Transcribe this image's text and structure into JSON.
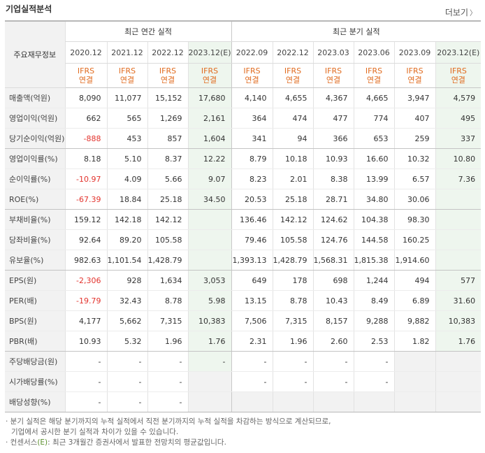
{
  "title": "기업실적분석",
  "more": "더보기",
  "table": {
    "row_header": "주요재무정보",
    "annual_group": "최근 연간 실적",
    "quarter_group": "최근 분기 실적",
    "periods": [
      "2020.12",
      "2021.12",
      "2022.12",
      "2023.12(E)",
      "2022.09",
      "2022.12",
      "2023.03",
      "2023.06",
      "2023.09",
      "2023.12(E)"
    ],
    "basis_top": "IFRS",
    "basis_bottom": "연결",
    "rows": [
      {
        "label": "매출액(억원)",
        "values": [
          "8,090",
          "11,077",
          "15,152",
          "17,680",
          "4,140",
          "4,655",
          "4,367",
          "4,665",
          "3,947",
          "4,579"
        ]
      },
      {
        "label": "영업이익(억원)",
        "values": [
          "662",
          "565",
          "1,269",
          "2,161",
          "364",
          "474",
          "477",
          "774",
          "407",
          "495"
        ]
      },
      {
        "label": "당기순이익(억원)",
        "values": [
          "-888",
          "453",
          "857",
          "1,604",
          "341",
          "94",
          "366",
          "653",
          "259",
          "337"
        ]
      },
      {
        "label": "영업이익률(%)",
        "values": [
          "8.18",
          "5.10",
          "8.37",
          "12.22",
          "8.79",
          "10.18",
          "10.93",
          "16.60",
          "10.32",
          "10.80"
        ]
      },
      {
        "label": "순이익률(%)",
        "values": [
          "-10.97",
          "4.09",
          "5.66",
          "9.07",
          "8.23",
          "2.01",
          "8.38",
          "13.99",
          "6.57",
          "7.36"
        ]
      },
      {
        "label": "ROE(%)",
        "values": [
          "-67.39",
          "18.84",
          "25.18",
          "34.50",
          "20.53",
          "25.18",
          "28.71",
          "34.80",
          "30.06",
          ""
        ]
      },
      {
        "label": "부채비율(%)",
        "values": [
          "159.12",
          "142.18",
          "142.12",
          "",
          "136.46",
          "142.12",
          "124.62",
          "104.38",
          "98.30",
          ""
        ]
      },
      {
        "label": "당좌비율(%)",
        "values": [
          "92.64",
          "89.20",
          "105.58",
          "",
          "79.46",
          "105.58",
          "124.76",
          "144.58",
          "160.25",
          ""
        ]
      },
      {
        "label": "유보율(%)",
        "values": [
          "982.63",
          "1,101.54",
          "1,428.79",
          "",
          "1,393.13",
          "1,428.79",
          "1,568.31",
          "1,815.38",
          "1,914.60",
          ""
        ]
      },
      {
        "label": "EPS(원)",
        "values": [
          "-2,306",
          "928",
          "1,634",
          "3,053",
          "649",
          "178",
          "698",
          "1,244",
          "494",
          "577"
        ]
      },
      {
        "label": "PER(배)",
        "values": [
          "-19.79",
          "32.43",
          "8.78",
          "5.98",
          "13.15",
          "8.78",
          "10.43",
          "8.49",
          "6.89",
          "31.60"
        ]
      },
      {
        "label": "BPS(원)",
        "values": [
          "4,177",
          "5,662",
          "7,315",
          "10,383",
          "7,506",
          "7,315",
          "8,157",
          "9,288",
          "9,882",
          "10,383"
        ]
      },
      {
        "label": "PBR(배)",
        "values": [
          "10.93",
          "5.32",
          "1.96",
          "1.76",
          "2.31",
          "1.96",
          "2.60",
          "2.53",
          "1.82",
          "1.76"
        ]
      },
      {
        "label": "주당배당금(원)",
        "values": [
          "-",
          "-",
          "-",
          "-",
          "-",
          "-",
          "-",
          "-",
          "",
          ""
        ]
      },
      {
        "label": "시가배당률(%)",
        "values": [
          "-",
          "-",
          "-",
          "",
          "-",
          "-",
          "-",
          "-",
          "",
          ""
        ]
      },
      {
        "label": "배당성향(%)",
        "values": [
          "-",
          "-",
          "-",
          "",
          "",
          "",
          "",
          "",
          "",
          ""
        ]
      }
    ]
  },
  "notes": {
    "line1": "· 분기 실적은 해당 분기까지의 누적 실적에서 직전 분기까지의 누적 실적을 차감하는 방식으로 계산되므로,",
    "line2": "기업에서 공시한 분기 실적과 차이가 있을 수 있습니다.",
    "line3_pre": "· 컨센서스",
    "line3_e": "(E)",
    "line3_post": ": 최근 3개월간 증권사에서 발표한 전망치의 평균값입니다."
  }
}
